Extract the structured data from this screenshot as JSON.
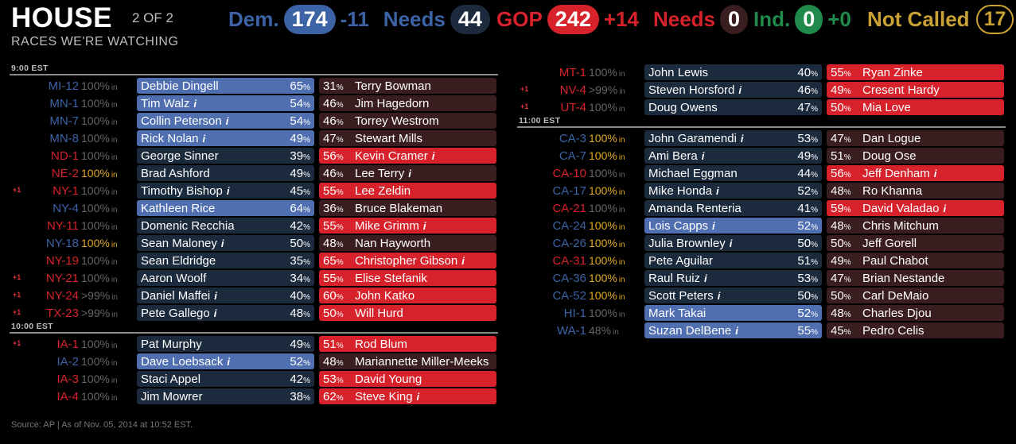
{
  "colors": {
    "dem": "#3c63a6",
    "gop": "#d7222b",
    "ind": "#1f8a4a",
    "notcalled": "#c9a233",
    "partial": "#e0a820"
  },
  "header": {
    "title": "HOUSE",
    "of": "2 OF 2",
    "subtitle": "RACES WE'RE WATCHING"
  },
  "tally": {
    "dem_label": "Dem.",
    "dem_seats": "174",
    "dem_change": "-11",
    "dem_needs_label": "Needs",
    "dem_needs": "44",
    "gop_label": "GOP",
    "gop_seats": "242",
    "gop_change": "+14",
    "gop_needs_label": "Needs",
    "gop_needs": "0",
    "ind_label": "Ind.",
    "ind_seats": "0",
    "ind_change": "+0",
    "nc_label": "Not Called",
    "nc_count": "17"
  },
  "in_suffix": "in",
  "sections_left": [
    {
      "time": "9:00 EST",
      "races": [
        {
          "flip": "",
          "state": "MI-12",
          "party": "dem",
          "reporting": "100%",
          "partial": false,
          "dem": {
            "name": "Debbie Dingell",
            "pct": "65",
            "inc": false
          },
          "gop": {
            "name": "Terry Bowman",
            "pct": "31",
            "inc": false
          },
          "winner": "dem"
        },
        {
          "flip": "",
          "state": "MN-1",
          "party": "dem",
          "reporting": "100%",
          "partial": false,
          "dem": {
            "name": "Tim Walz",
            "pct": "54",
            "inc": true
          },
          "gop": {
            "name": "Jim Hagedorn",
            "pct": "46",
            "inc": false
          },
          "winner": "dem"
        },
        {
          "flip": "",
          "state": "MN-7",
          "party": "dem",
          "reporting": "100%",
          "partial": false,
          "dem": {
            "name": "Collin Peterson",
            "pct": "54",
            "inc": true
          },
          "gop": {
            "name": "Torrey Westrom",
            "pct": "46",
            "inc": false
          },
          "winner": "dem"
        },
        {
          "flip": "",
          "state": "MN-8",
          "party": "dem",
          "reporting": "100%",
          "partial": false,
          "dem": {
            "name": "Rick Nolan",
            "pct": "49",
            "inc": true
          },
          "gop": {
            "name": "Stewart Mills",
            "pct": "47",
            "inc": false
          },
          "winner": "dem"
        },
        {
          "flip": "",
          "state": "ND-1",
          "party": "gop",
          "reporting": "100%",
          "partial": false,
          "dem": {
            "name": "George Sinner",
            "pct": "39",
            "inc": false
          },
          "gop": {
            "name": "Kevin Cramer",
            "pct": "56",
            "inc": true
          },
          "winner": "gop"
        },
        {
          "flip": "",
          "state": "NE-2",
          "party": "gop",
          "reporting": "100%",
          "partial": true,
          "dem": {
            "name": "Brad Ashford",
            "pct": "49",
            "inc": false
          },
          "gop": {
            "name": "Lee Terry",
            "pct": "46",
            "inc": true
          },
          "winner": "none"
        },
        {
          "flip": "+1",
          "state": "NY-1",
          "party": "gop",
          "reporting": "100%",
          "partial": false,
          "dem": {
            "name": "Timothy Bishop",
            "pct": "45",
            "inc": true
          },
          "gop": {
            "name": "Lee Zeldin",
            "pct": "55",
            "inc": false
          },
          "winner": "gop"
        },
        {
          "flip": "",
          "state": "NY-4",
          "party": "dem",
          "reporting": "100%",
          "partial": false,
          "dem": {
            "name": "Kathleen Rice",
            "pct": "64",
            "inc": false
          },
          "gop": {
            "name": "Bruce Blakeman",
            "pct": "36",
            "inc": false
          },
          "winner": "dem"
        },
        {
          "flip": "",
          "state": "NY-11",
          "party": "gop",
          "reporting": "100%",
          "partial": false,
          "dem": {
            "name": "Domenic Recchia",
            "pct": "42",
            "inc": false
          },
          "gop": {
            "name": "Mike Grimm",
            "pct": "55",
            "inc": true
          },
          "winner": "gop"
        },
        {
          "flip": "",
          "state": "NY-18",
          "party": "dem",
          "reporting": "100%",
          "partial": true,
          "dem": {
            "name": "Sean Maloney",
            "pct": "50",
            "inc": true
          },
          "gop": {
            "name": "Nan Hayworth",
            "pct": "48",
            "inc": false
          },
          "winner": "none"
        },
        {
          "flip": "",
          "state": "NY-19",
          "party": "gop",
          "reporting": "100%",
          "partial": false,
          "dem": {
            "name": "Sean Eldridge",
            "pct": "35",
            "inc": false
          },
          "gop": {
            "name": "Christopher Gibson",
            "pct": "65",
            "inc": true
          },
          "winner": "gop"
        },
        {
          "flip": "+1",
          "state": "NY-21",
          "party": "gop",
          "reporting": "100%",
          "partial": false,
          "dem": {
            "name": "Aaron Woolf",
            "pct": "34",
            "inc": false
          },
          "gop": {
            "name": "Elise Stefanik",
            "pct": "55",
            "inc": false
          },
          "winner": "gop"
        },
        {
          "flip": "+1",
          "state": "NY-24",
          "party": "gop",
          "reporting": ">99%",
          "partial": false,
          "dem": {
            "name": "Daniel Maffei",
            "pct": "40",
            "inc": true
          },
          "gop": {
            "name": "John Katko",
            "pct": "60",
            "inc": false
          },
          "winner": "gop"
        },
        {
          "flip": "+1",
          "state": "TX-23",
          "party": "gop",
          "reporting": ">99%",
          "partial": false,
          "dem": {
            "name": "Pete Gallego",
            "pct": "48",
            "inc": true
          },
          "gop": {
            "name": "Will Hurd",
            "pct": "50",
            "inc": false
          },
          "winner": "gop"
        }
      ]
    },
    {
      "time": "10:00 EST",
      "races": [
        {
          "flip": "+1",
          "state": "IA-1",
          "party": "gop",
          "reporting": "100%",
          "partial": false,
          "dem": {
            "name": "Pat Murphy",
            "pct": "49",
            "inc": false
          },
          "gop": {
            "name": "Rod Blum",
            "pct": "51",
            "inc": false
          },
          "winner": "gop"
        },
        {
          "flip": "",
          "state": "IA-2",
          "party": "dem",
          "reporting": "100%",
          "partial": false,
          "dem": {
            "name": "Dave Loebsack",
            "pct": "52",
            "inc": true
          },
          "gop": {
            "name": "Mariannette Miller-Meeks",
            "pct": "48",
            "inc": false
          },
          "winner": "dem"
        },
        {
          "flip": "",
          "state": "IA-3",
          "party": "gop",
          "reporting": "100%",
          "partial": false,
          "dem": {
            "name": "Staci Appel",
            "pct": "42",
            "inc": false
          },
          "gop": {
            "name": "David Young",
            "pct": "53",
            "inc": false
          },
          "winner": "gop"
        },
        {
          "flip": "",
          "state": "IA-4",
          "party": "gop",
          "reporting": "100%",
          "partial": false,
          "dem": {
            "name": "Jim Mowrer",
            "pct": "38",
            "inc": false
          },
          "gop": {
            "name": "Steve King",
            "pct": "62",
            "inc": true
          },
          "winner": "gop"
        }
      ]
    }
  ],
  "sections_right": [
    {
      "time": "",
      "races": [
        {
          "flip": "",
          "state": "MT-1",
          "party": "gop",
          "reporting": "100%",
          "partial": false,
          "dem": {
            "name": "John Lewis",
            "pct": "40",
            "inc": false
          },
          "gop": {
            "name": "Ryan Zinke",
            "pct": "55",
            "inc": false
          },
          "winner": "gop"
        },
        {
          "flip": "+1",
          "state": "NV-4",
          "party": "gop",
          "reporting": ">99%",
          "partial": false,
          "dem": {
            "name": "Steven Horsford",
            "pct": "46",
            "inc": true
          },
          "gop": {
            "name": "Cresent Hardy",
            "pct": "49",
            "inc": false
          },
          "winner": "gop"
        },
        {
          "flip": "+1",
          "state": "UT-4",
          "party": "gop",
          "reporting": "100%",
          "partial": false,
          "dem": {
            "name": "Doug Owens",
            "pct": "47",
            "inc": false
          },
          "gop": {
            "name": "Mia Love",
            "pct": "50",
            "inc": false
          },
          "winner": "gop"
        }
      ]
    },
    {
      "time": "11:00 EST",
      "races": [
        {
          "flip": "",
          "state": "CA-3",
          "party": "dem",
          "reporting": "100%",
          "partial": true,
          "dem": {
            "name": "John Garamendi",
            "pct": "53",
            "inc": true
          },
          "gop": {
            "name": "Dan Logue",
            "pct": "47",
            "inc": false
          },
          "winner": "none"
        },
        {
          "flip": "",
          "state": "CA-7",
          "party": "dem",
          "reporting": "100%",
          "partial": true,
          "dem": {
            "name": "Ami Bera",
            "pct": "49",
            "inc": true
          },
          "gop": {
            "name": "Doug Ose",
            "pct": "51",
            "inc": false
          },
          "winner": "none"
        },
        {
          "flip": "",
          "state": "CA-10",
          "party": "gop",
          "reporting": "100%",
          "partial": false,
          "dem": {
            "name": "Michael Eggman",
            "pct": "44",
            "inc": false
          },
          "gop": {
            "name": "Jeff Denham",
            "pct": "56",
            "inc": true
          },
          "winner": "gop"
        },
        {
          "flip": "",
          "state": "CA-17",
          "party": "dem",
          "reporting": "100%",
          "partial": true,
          "dem": {
            "name": "Mike Honda",
            "pct": "52",
            "inc": true
          },
          "gop": {
            "name": "Ro Khanna",
            "pct": "48",
            "inc": false
          },
          "winner": "none"
        },
        {
          "flip": "",
          "state": "CA-21",
          "party": "gop",
          "reporting": "100%",
          "partial": false,
          "dem": {
            "name": "Amanda Renteria",
            "pct": "41",
            "inc": false
          },
          "gop": {
            "name": "David Valadao",
            "pct": "59",
            "inc": true
          },
          "winner": "gop"
        },
        {
          "flip": "",
          "state": "CA-24",
          "party": "dem",
          "reporting": "100%",
          "partial": true,
          "dem": {
            "name": "Lois Capps",
            "pct": "52",
            "inc": true
          },
          "gop": {
            "name": "Chris Mitchum",
            "pct": "48",
            "inc": false
          },
          "winner": "dem"
        },
        {
          "flip": "",
          "state": "CA-26",
          "party": "dem",
          "reporting": "100%",
          "partial": true,
          "dem": {
            "name": "Julia Brownley",
            "pct": "50",
            "inc": true
          },
          "gop": {
            "name": "Jeff Gorell",
            "pct": "50",
            "inc": false
          },
          "winner": "none"
        },
        {
          "flip": "",
          "state": "CA-31",
          "party": "gop",
          "reporting": "100%",
          "partial": true,
          "dem": {
            "name": "Pete Aguilar",
            "pct": "51",
            "inc": false
          },
          "gop": {
            "name": "Paul Chabot",
            "pct": "49",
            "inc": false
          },
          "winner": "none"
        },
        {
          "flip": "",
          "state": "CA-36",
          "party": "dem",
          "reporting": "100%",
          "partial": true,
          "dem": {
            "name": "Raul Ruiz",
            "pct": "53",
            "inc": true
          },
          "gop": {
            "name": "Brian Nestande",
            "pct": "47",
            "inc": false
          },
          "winner": "none"
        },
        {
          "flip": "",
          "state": "CA-52",
          "party": "dem",
          "reporting": "100%",
          "partial": true,
          "dem": {
            "name": "Scott Peters",
            "pct": "50",
            "inc": true
          },
          "gop": {
            "name": "Carl DeMaio",
            "pct": "50",
            "inc": false
          },
          "winner": "none"
        },
        {
          "flip": "",
          "state": "HI-1",
          "party": "dem",
          "reporting": "100%",
          "partial": false,
          "dem": {
            "name": "Mark Takai",
            "pct": "52",
            "inc": false
          },
          "gop": {
            "name": "Charles Djou",
            "pct": "48",
            "inc": false
          },
          "winner": "dem"
        },
        {
          "flip": "",
          "state": "WA-1",
          "party": "dem",
          "reporting": "48%",
          "partial": false,
          "dem": {
            "name": "Suzan DelBene",
            "pct": "55",
            "inc": true
          },
          "gop": {
            "name": "Pedro Celis",
            "pct": "45",
            "inc": false
          },
          "winner": "dem"
        }
      ]
    }
  ],
  "footer": "Source: AP  |  As of Nov. 05, 2014 at 10:52 EST."
}
